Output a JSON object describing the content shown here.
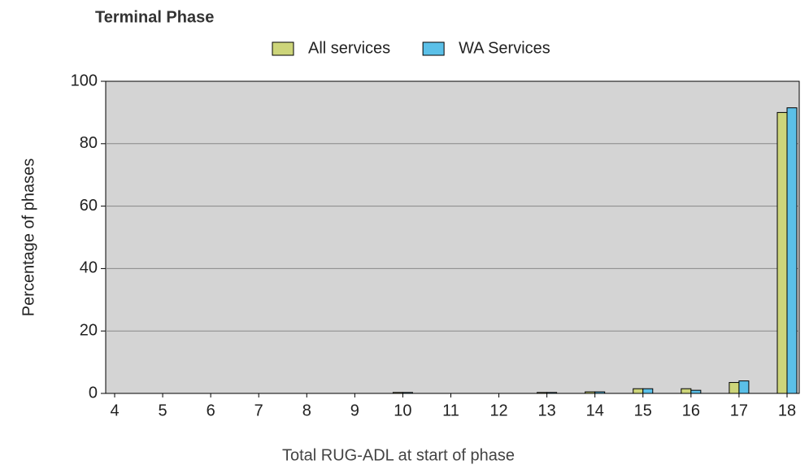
{
  "chart_data": {
    "type": "bar",
    "title": "Terminal Phase",
    "x_label": "Total RUG-ADL at start of phase",
    "y_label": "Percentage of phases",
    "categories": [
      "4",
      "5",
      "6",
      "7",
      "8",
      "9",
      "10",
      "11",
      "12",
      "13",
      "14",
      "15",
      "16",
      "17",
      "18"
    ],
    "series": [
      {
        "name": "All services",
        "color": "#cdd57a",
        "values": [
          0,
          0,
          0,
          0,
          0,
          0,
          0.3,
          0,
          0,
          0.3,
          0.5,
          1.5,
          1.5,
          3.5,
          90
        ]
      },
      {
        "name": "WA Services",
        "color": "#5bc0e8",
        "values": [
          0,
          0,
          0,
          0,
          0,
          0,
          0.3,
          0,
          0,
          0.3,
          0.5,
          1.5,
          1,
          4,
          91.5
        ]
      }
    ],
    "ylim": [
      0,
      100
    ],
    "yticks": [
      0,
      20,
      40,
      60,
      80,
      100
    ],
    "grid": true,
    "legend": "top"
  }
}
